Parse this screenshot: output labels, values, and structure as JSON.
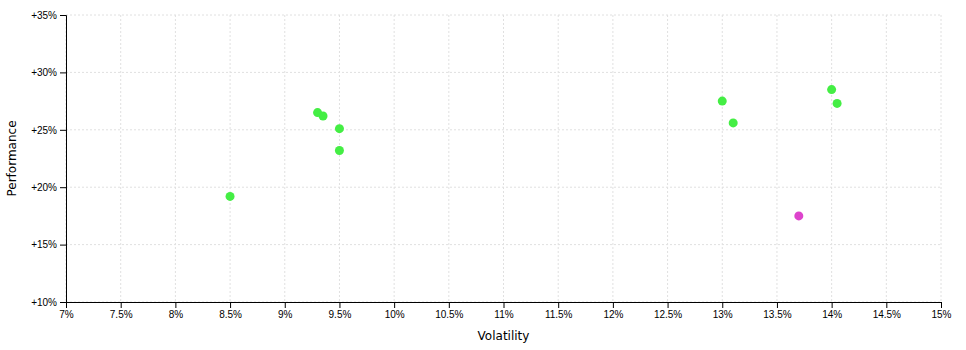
{
  "chart_data": {
    "type": "scatter",
    "series": [
      {
        "color": "#44ee44",
        "x": [
          8.5,
          9.3,
          9.35,
          9.5,
          9.5,
          13.0,
          13.1,
          14.0,
          14.05
        ],
        "values": [
          19.2,
          26.5,
          26.2,
          25.1,
          23.2,
          27.5,
          25.6,
          28.5,
          27.3
        ]
      },
      {
        "color": "#dd44cc",
        "x": [
          13.7
        ],
        "values": [
          17.5
        ]
      }
    ],
    "xlabel": "Volatility",
    "ylabel": "Performance",
    "xlim": [
      7.0,
      15.0
    ],
    "ylim": [
      10.0,
      35.0
    ],
    "xticks": [
      {
        "value": 7.0,
        "label": "7%"
      },
      {
        "value": 7.5,
        "label": "7.5%"
      },
      {
        "value": 8.0,
        "label": "8%"
      },
      {
        "value": 8.5,
        "label": "8.5%"
      },
      {
        "value": 9.0,
        "label": "9%"
      },
      {
        "value": 9.5,
        "label": "9.5%"
      },
      {
        "value": 10.0,
        "label": "10%"
      },
      {
        "value": 10.5,
        "label": "10.5%"
      },
      {
        "value": 11.0,
        "label": "11%"
      },
      {
        "value": 11.5,
        "label": "11.5%"
      },
      {
        "value": 12.0,
        "label": "12%"
      },
      {
        "value": 12.5,
        "label": "12.5%"
      },
      {
        "value": 13.0,
        "label": "13%"
      },
      {
        "value": 13.5,
        "label": "13.5%"
      },
      {
        "value": 14.0,
        "label": "14%"
      },
      {
        "value": 14.5,
        "label": "14.5%"
      },
      {
        "value": 15.0,
        "label": "15%"
      }
    ],
    "yticks": [
      {
        "value": 10.0,
        "label": "+10%"
      },
      {
        "value": 15.0,
        "label": "+15%"
      },
      {
        "value": 20.0,
        "label": "+20%"
      },
      {
        "value": 25.0,
        "label": "+25%"
      },
      {
        "value": 30.0,
        "label": "+30%"
      },
      {
        "value": 35.0,
        "label": "+35%"
      }
    ],
    "grid": true
  }
}
